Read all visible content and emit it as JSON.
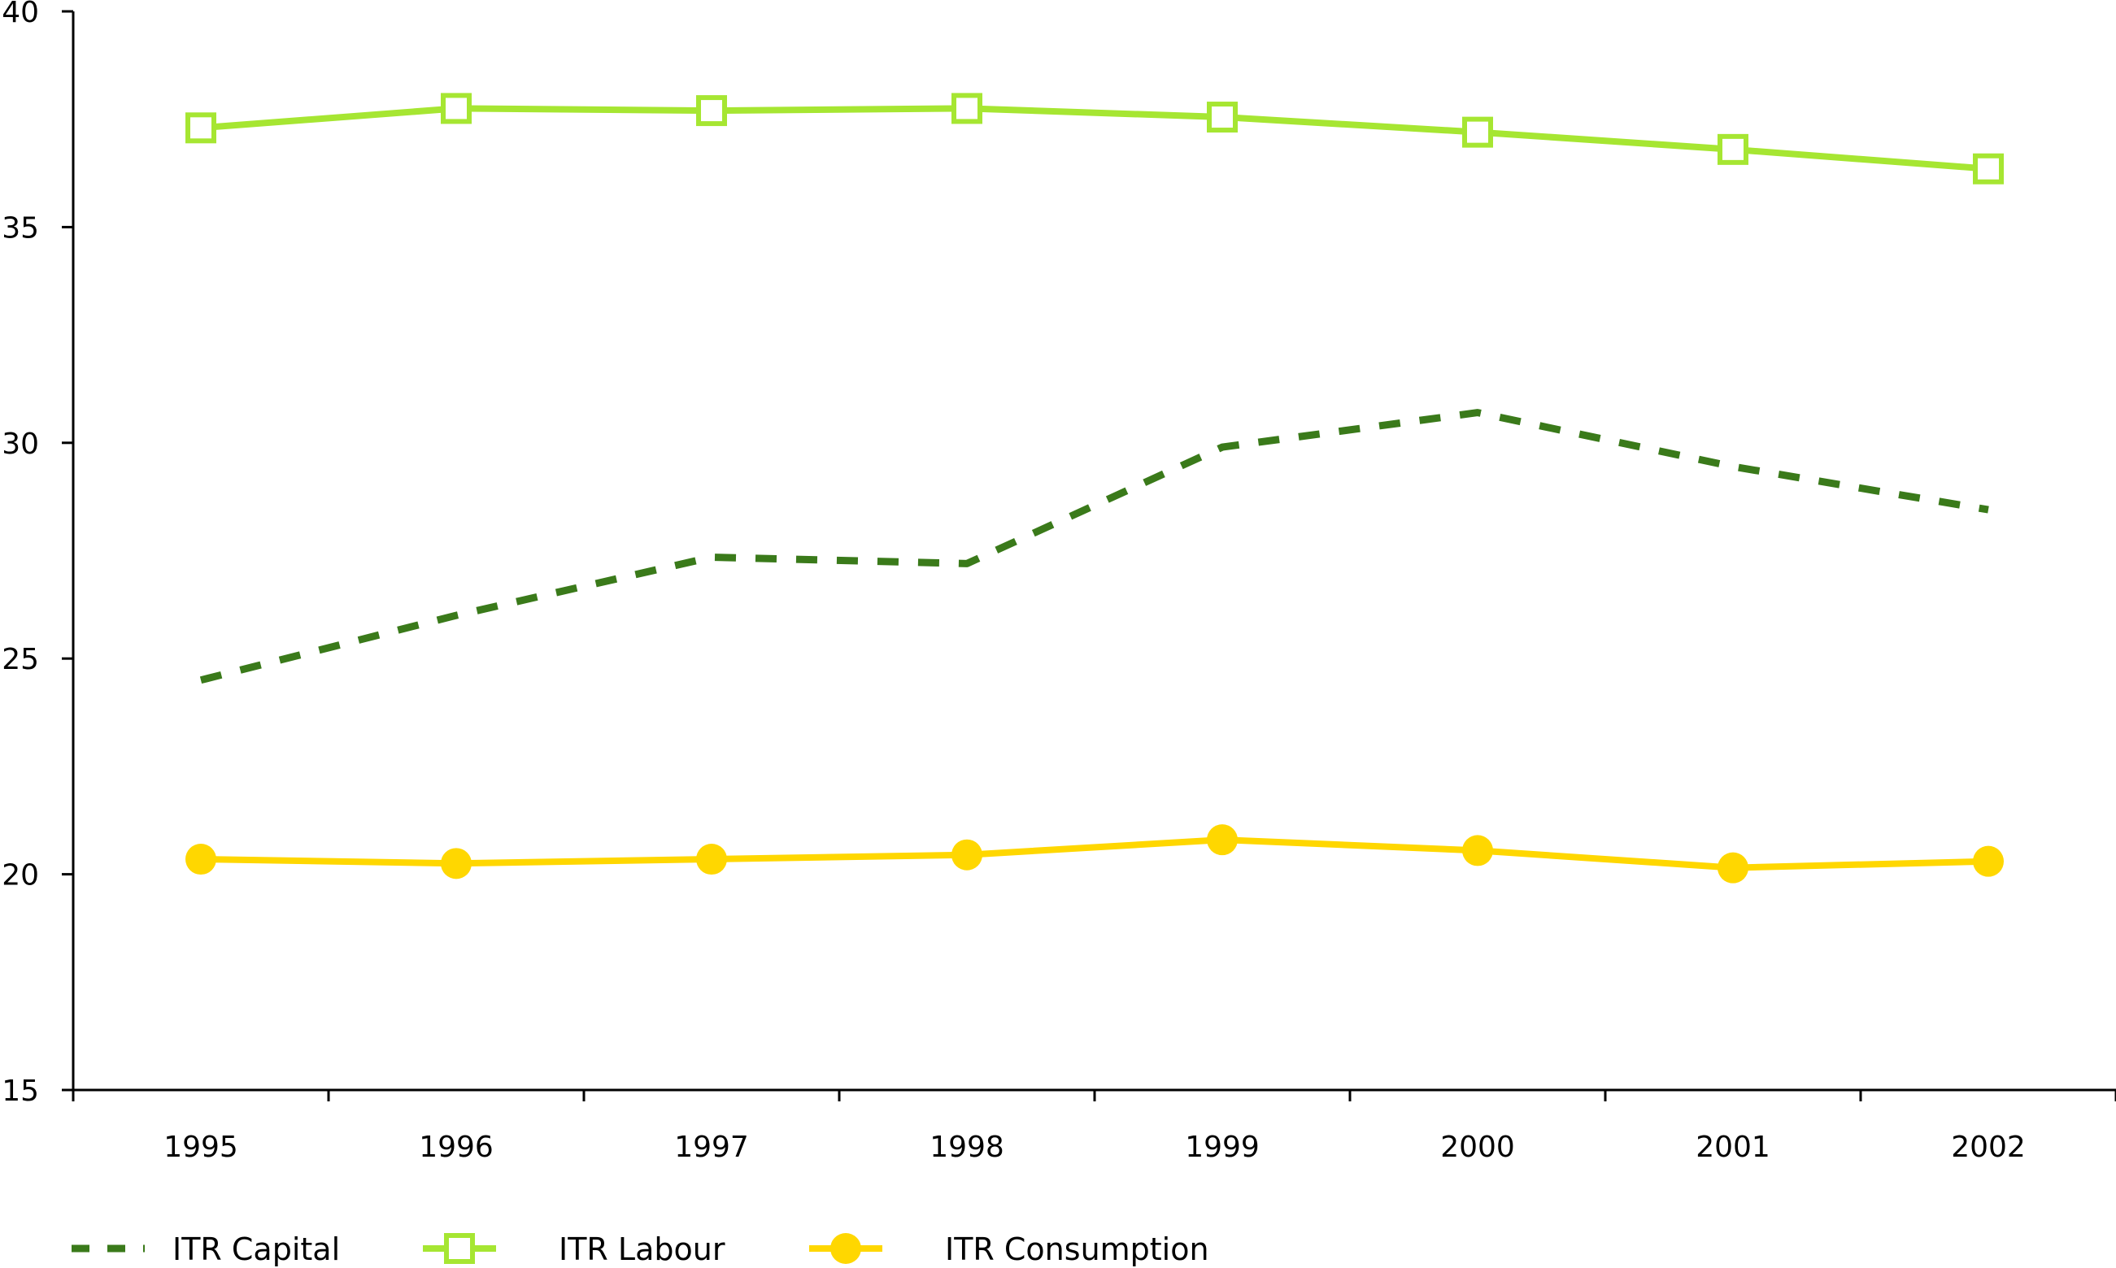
{
  "chart_data": {
    "type": "line",
    "x": [
      "1995",
      "1996",
      "1997",
      "1998",
      "1999",
      "2000",
      "2001",
      "2002"
    ],
    "ylim": [
      15,
      40
    ],
    "yticks": [
      "15",
      "20",
      "25",
      "30",
      "35",
      "40"
    ],
    "grid": false,
    "legend_position": "bottom-left",
    "series": [
      {
        "name": "ITR Capital",
        "color": "#3a7a1a",
        "style": "dashed",
        "marker": "none",
        "values": [
          24.5,
          26.0,
          27.35,
          27.2,
          29.9,
          30.7,
          29.45,
          28.45
        ]
      },
      {
        "name": "ITR Labour",
        "color": "#a6e632",
        "style": "solid",
        "marker": "open-square",
        "values": [
          37.3,
          37.75,
          37.7,
          37.75,
          37.55,
          37.2,
          36.8,
          36.35
        ]
      },
      {
        "name": "ITR Consumption",
        "color": "#ffd700",
        "style": "solid",
        "marker": "filled-circle",
        "values": [
          20.35,
          20.25,
          20.35,
          20.45,
          20.8,
          20.55,
          20.15,
          20.3
        ]
      }
    ]
  }
}
